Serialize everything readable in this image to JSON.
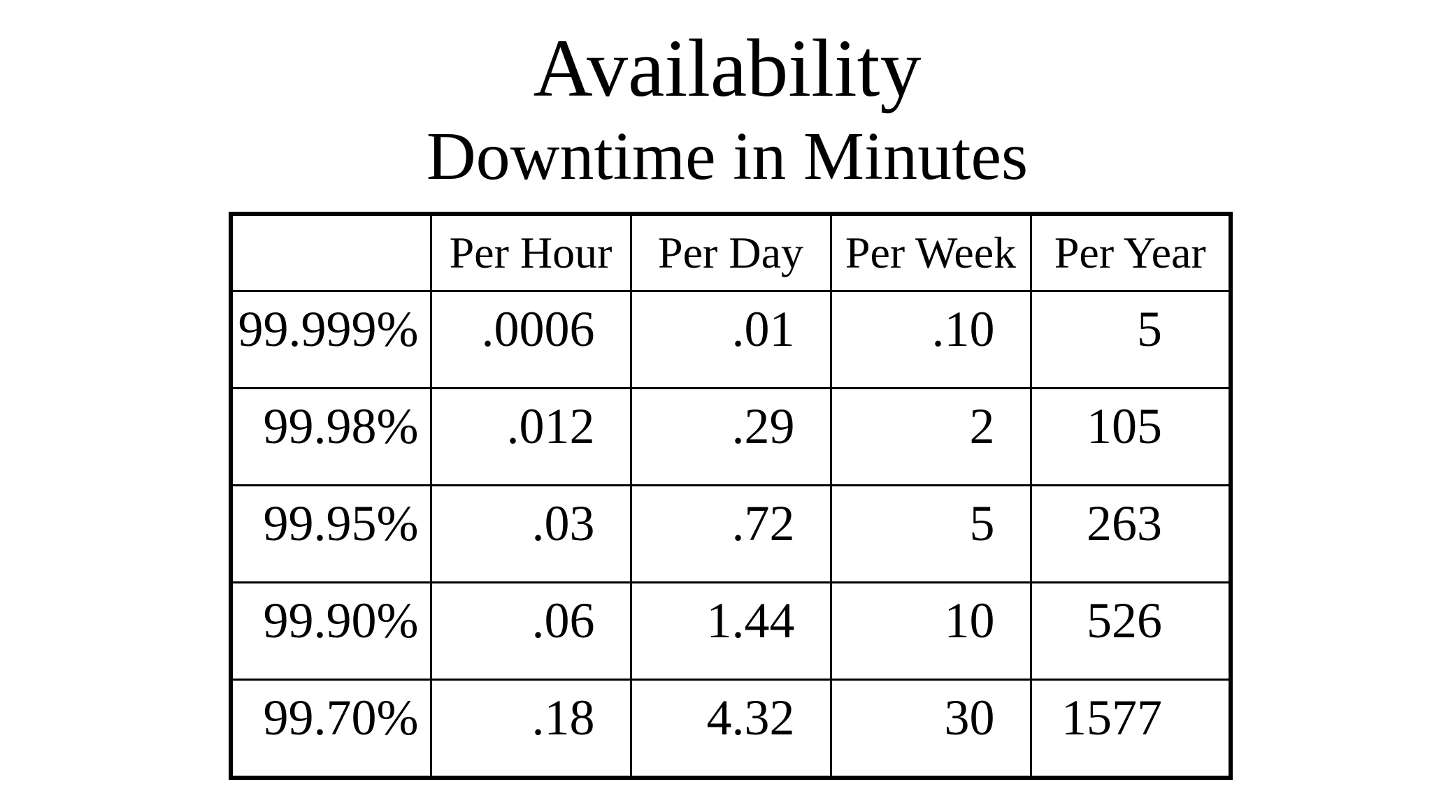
{
  "page": {
    "background_color": "#ffffff",
    "text_color": "#000000"
  },
  "title": {
    "line1": "Availability",
    "line2": "Downtime in Minutes"
  },
  "table": {
    "columns": [
      "",
      "Per Hour",
      "Per Day",
      "Per Week",
      "Per Year"
    ],
    "rows": [
      {
        "label": "99.999%",
        "values": [
          ".0006",
          ".01",
          ".10",
          "5"
        ]
      },
      {
        "label": "99.98%",
        "values": [
          ".012",
          ".29",
          "2",
          "105"
        ]
      },
      {
        "label": "99.95%",
        "values": [
          ".03",
          ".72",
          "5",
          "263"
        ]
      },
      {
        "label": "99.90%",
        "values": [
          ".06",
          "1.44",
          "10",
          "526"
        ]
      },
      {
        "label": "99.70%",
        "values": [
          ".18",
          "4.32",
          "30",
          "1577"
        ]
      }
    ]
  },
  "chart_data": {
    "type": "table",
    "title": "Availability — Downtime in Minutes",
    "columns": [
      "Availability",
      "Per Hour",
      "Per Day",
      "Per Week",
      "Per Year"
    ],
    "rows": [
      [
        "99.999%",
        0.0006,
        0.01,
        0.1,
        5
      ],
      [
        "99.98%",
        0.012,
        0.29,
        2,
        105
      ],
      [
        "99.95%",
        0.03,
        0.72,
        5,
        263
      ],
      [
        "99.90%",
        0.06,
        1.44,
        10,
        526
      ],
      [
        "99.70%",
        0.18,
        4.32,
        30,
        1577
      ]
    ]
  }
}
